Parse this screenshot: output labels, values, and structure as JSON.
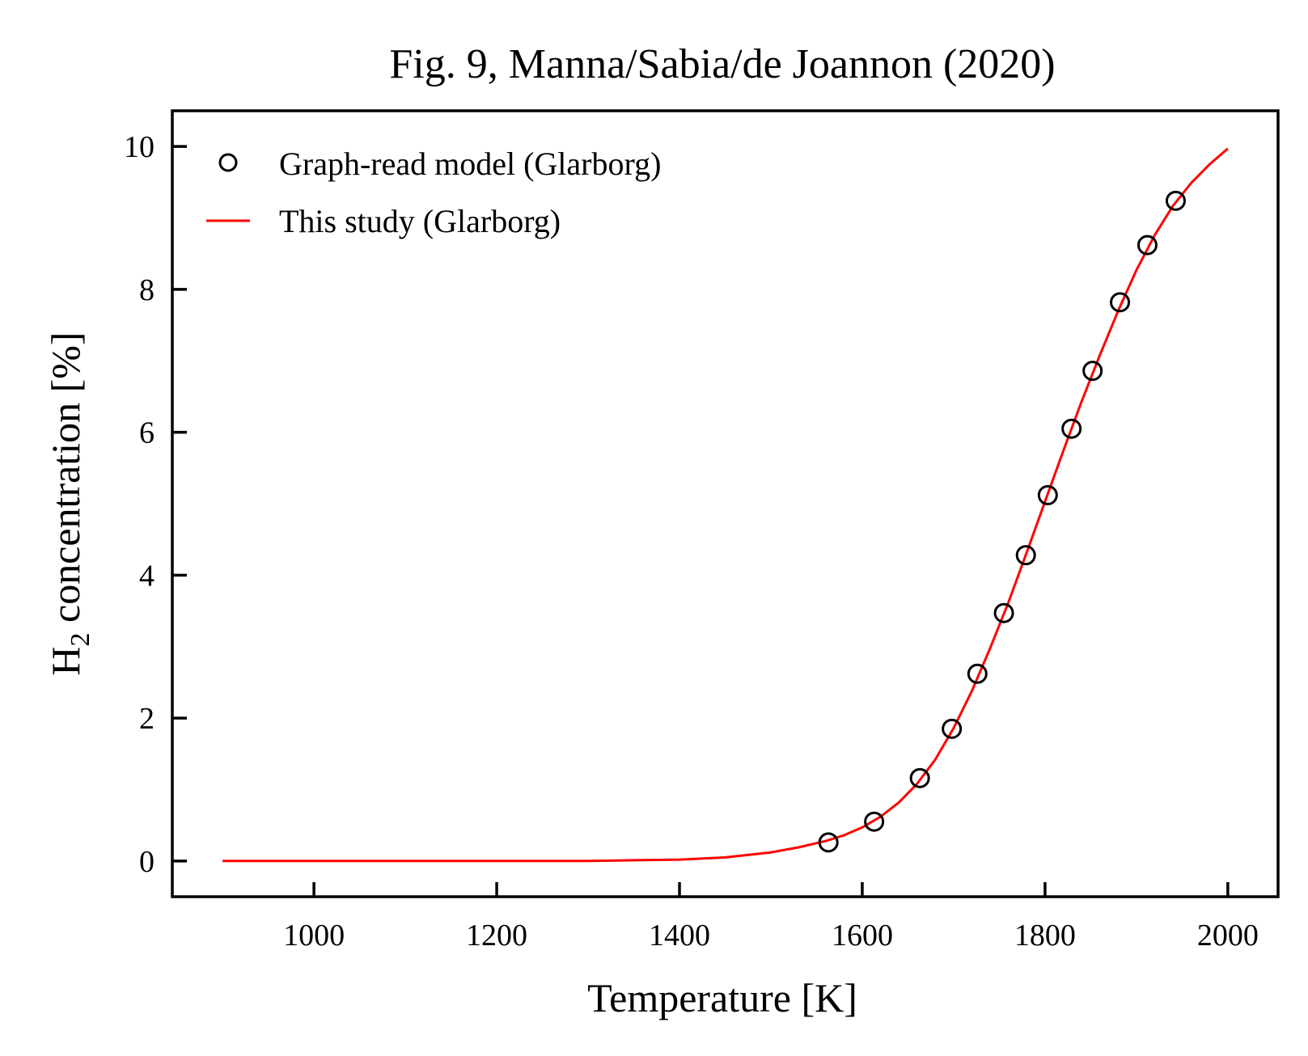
{
  "chart_data": {
    "type": "line",
    "title": "Fig. 9, Manna/Sabia/de Joannon (2020)",
    "xlabel": "Temperature [K]",
    "ylabel": {
      "main": "H",
      "sub": "2",
      "rest": " concentration [%]"
    },
    "xlim": [
      845,
      2055
    ],
    "ylim": [
      -0.5,
      10.5
    ],
    "xticks": [
      1000,
      1200,
      1400,
      1600,
      1800,
      2000
    ],
    "yticks": [
      0,
      2,
      4,
      6,
      8,
      10
    ],
    "grid": false,
    "legend_position": "top-left",
    "colors": {
      "line": "#ff0000",
      "markers": "#000000",
      "axes": "#000000"
    },
    "series": [
      {
        "name": "Graph-read model (Glarborg)",
        "style": "open-circle",
        "points": [
          [
            1563,
            0.26
          ],
          [
            1613,
            0.55
          ],
          [
            1663,
            1.16
          ],
          [
            1698,
            1.85
          ],
          [
            1726,
            2.62
          ],
          [
            1755,
            3.47
          ],
          [
            1779,
            4.28
          ],
          [
            1803,
            5.12
          ],
          [
            1829,
            6.05
          ],
          [
            1852,
            6.86
          ],
          [
            1882,
            7.82
          ],
          [
            1912,
            8.62
          ],
          [
            1943,
            9.24
          ]
        ]
      },
      {
        "name": "This study (Glarborg)",
        "style": "line",
        "points": [
          [
            900,
            0.0
          ],
          [
            1000,
            0.0
          ],
          [
            1100,
            0.0
          ],
          [
            1200,
            0.0
          ],
          [
            1300,
            0.0
          ],
          [
            1350,
            0.01
          ],
          [
            1400,
            0.02
          ],
          [
            1450,
            0.05
          ],
          [
            1500,
            0.12
          ],
          [
            1530,
            0.19
          ],
          [
            1560,
            0.28
          ],
          [
            1580,
            0.36
          ],
          [
            1600,
            0.47
          ],
          [
            1620,
            0.62
          ],
          [
            1640,
            0.82
          ],
          [
            1660,
            1.08
          ],
          [
            1680,
            1.42
          ],
          [
            1700,
            1.86
          ],
          [
            1720,
            2.38
          ],
          [
            1740,
            2.98
          ],
          [
            1760,
            3.62
          ],
          [
            1780,
            4.32
          ],
          [
            1800,
            5.03
          ],
          [
            1820,
            5.74
          ],
          [
            1840,
            6.43
          ],
          [
            1860,
            7.08
          ],
          [
            1880,
            7.7
          ],
          [
            1900,
            8.27
          ],
          [
            1920,
            8.76
          ],
          [
            1940,
            9.17
          ],
          [
            1960,
            9.49
          ],
          [
            1980,
            9.75
          ],
          [
            2000,
            9.97
          ]
        ]
      }
    ]
  }
}
